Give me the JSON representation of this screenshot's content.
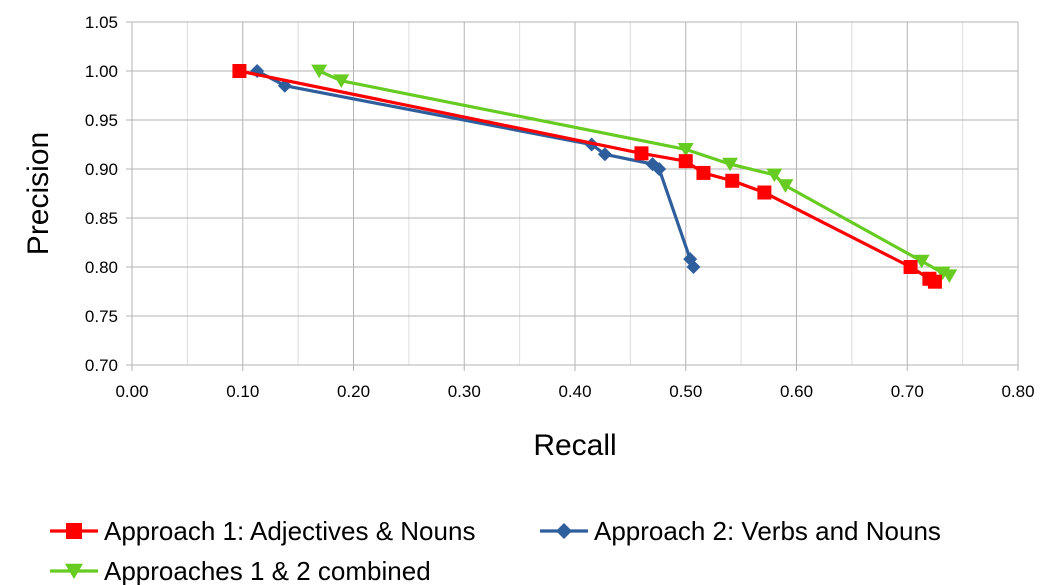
{
  "chart_data": {
    "type": "line",
    "xlabel": "Recall",
    "ylabel": "Precision",
    "xlim": [
      0.0,
      0.8
    ],
    "ylim": [
      0.7,
      1.05
    ],
    "x_ticks": [
      "0.00",
      "0.10",
      "0.20",
      "0.30",
      "0.40",
      "0.50",
      "0.60",
      "0.70",
      "0.80"
    ],
    "y_ticks": [
      "0.70",
      "0.75",
      "0.80",
      "0.85",
      "0.90",
      "0.95",
      "1.00",
      "1.05"
    ],
    "grid": true,
    "legend_position": "bottom",
    "series": [
      {
        "name": "Approach 1: Adjectives & Nouns",
        "color": "#ff0000",
        "marker": "square",
        "points": [
          [
            0.097,
            1.0
          ],
          [
            0.46,
            0.916
          ],
          [
            0.5,
            0.908
          ],
          [
            0.516,
            0.896
          ],
          [
            0.542,
            0.888
          ],
          [
            0.571,
            0.876
          ],
          [
            0.703,
            0.8
          ],
          [
            0.72,
            0.788
          ],
          [
            0.725,
            0.785
          ]
        ]
      },
      {
        "name": "Approach 2: Verbs and Nouns",
        "color": "#2e5e9c",
        "marker": "diamond",
        "points": [
          [
            0.113,
            1.0
          ],
          [
            0.138,
            0.985
          ],
          [
            0.415,
            0.925
          ],
          [
            0.427,
            0.915
          ],
          [
            0.47,
            0.905
          ],
          [
            0.476,
            0.9
          ],
          [
            0.504,
            0.808
          ],
          [
            0.507,
            0.8
          ]
        ]
      },
      {
        "name": "Approaches 1 & 2 combined",
        "color": "#66cc22",
        "marker": "triangle-down",
        "points": [
          [
            0.169,
            1.0
          ],
          [
            0.189,
            0.99
          ],
          [
            0.5,
            0.92
          ],
          [
            0.54,
            0.905
          ],
          [
            0.58,
            0.894
          ],
          [
            0.59,
            0.883
          ],
          [
            0.713,
            0.806
          ],
          [
            0.732,
            0.794
          ],
          [
            0.738,
            0.791
          ]
        ]
      }
    ]
  }
}
